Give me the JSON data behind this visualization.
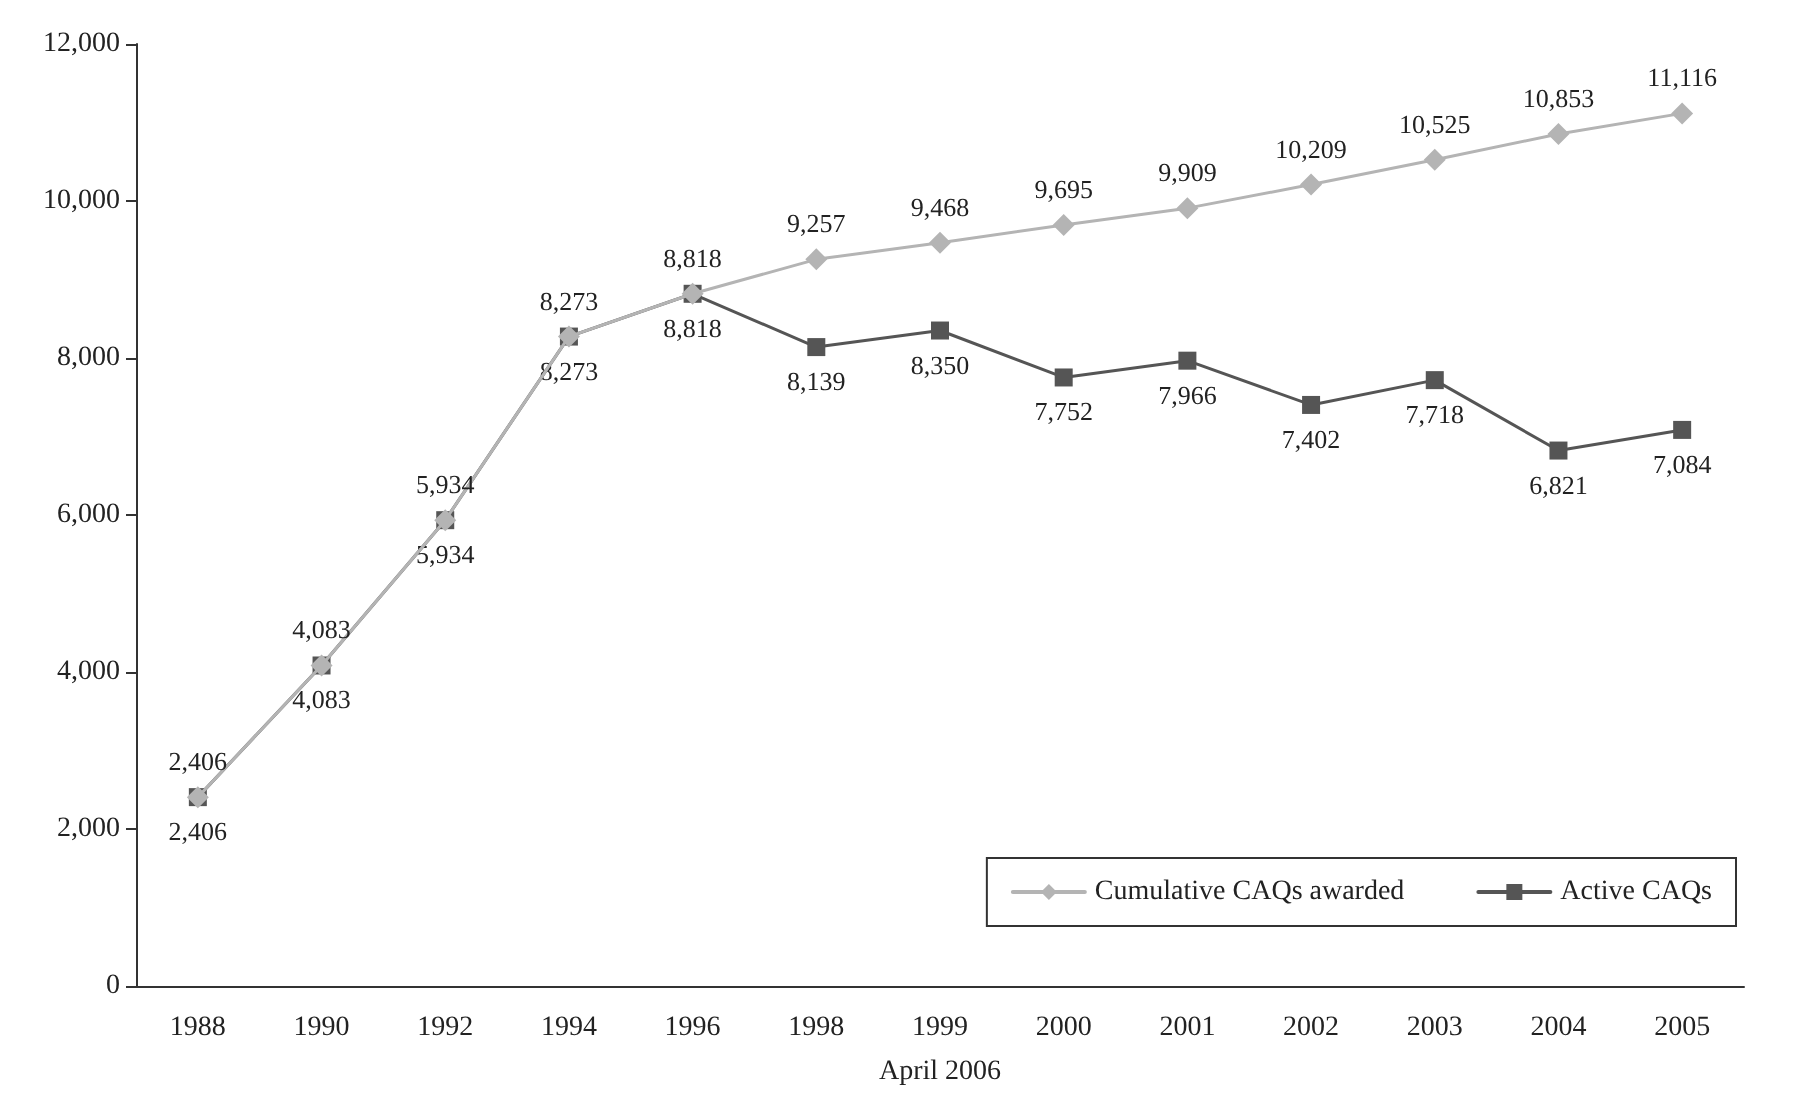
{
  "chart_data": {
    "type": "line",
    "xlabel": "April 2006",
    "categories": [
      "1988",
      "1990",
      "1992",
      "1994",
      "1996",
      "1998",
      "1999",
      "2000",
      "2001",
      "2002",
      "2003",
      "2004",
      "2005"
    ],
    "series": [
      {
        "name": "Cumulative CAQs awarded",
        "color": "#b4b4b4",
        "marker": "diamond",
        "values": [
          2406,
          4083,
          5934,
          8273,
          8818,
          9257,
          9468,
          9695,
          9909,
          10209,
          10525,
          10853,
          11116
        ],
        "value_labels": [
          "2,406",
          "4,083",
          "5,934",
          "8,273",
          "8,818",
          "9,257",
          "9,468",
          "9,695",
          "9,909",
          "10,209",
          "10,525",
          "10,853",
          "11,116"
        ]
      },
      {
        "name": "Active CAQs",
        "color": "#555555",
        "marker": "square",
        "values": [
          2406,
          4083,
          5934,
          8273,
          8818,
          8139,
          8350,
          7752,
          7966,
          7402,
          7718,
          6821,
          7084
        ],
        "value_labels": [
          "2,406",
          "4,083",
          "5,934",
          "8,273",
          "8,818",
          "8,139",
          "8,350",
          "7,752",
          "7,966",
          "7,402",
          "7,718",
          "6,821",
          "7,084"
        ]
      }
    ],
    "ylim": [
      0,
      12000
    ],
    "yticks": [
      0,
      {
        "value": 2000,
        "label": "2,000"
      },
      {
        "value": 4000,
        "label": "4,000"
      },
      {
        "value": 6000,
        "label": "6,000"
      },
      {
        "value": 8000,
        "label": "8,000"
      },
      {
        "value": 10000,
        "label": "10,000"
      },
      {
        "value": 12000,
        "label": "12,000"
      }
    ],
    "grid": false,
    "legend": "bottom right",
    "line_style": "solid"
  }
}
